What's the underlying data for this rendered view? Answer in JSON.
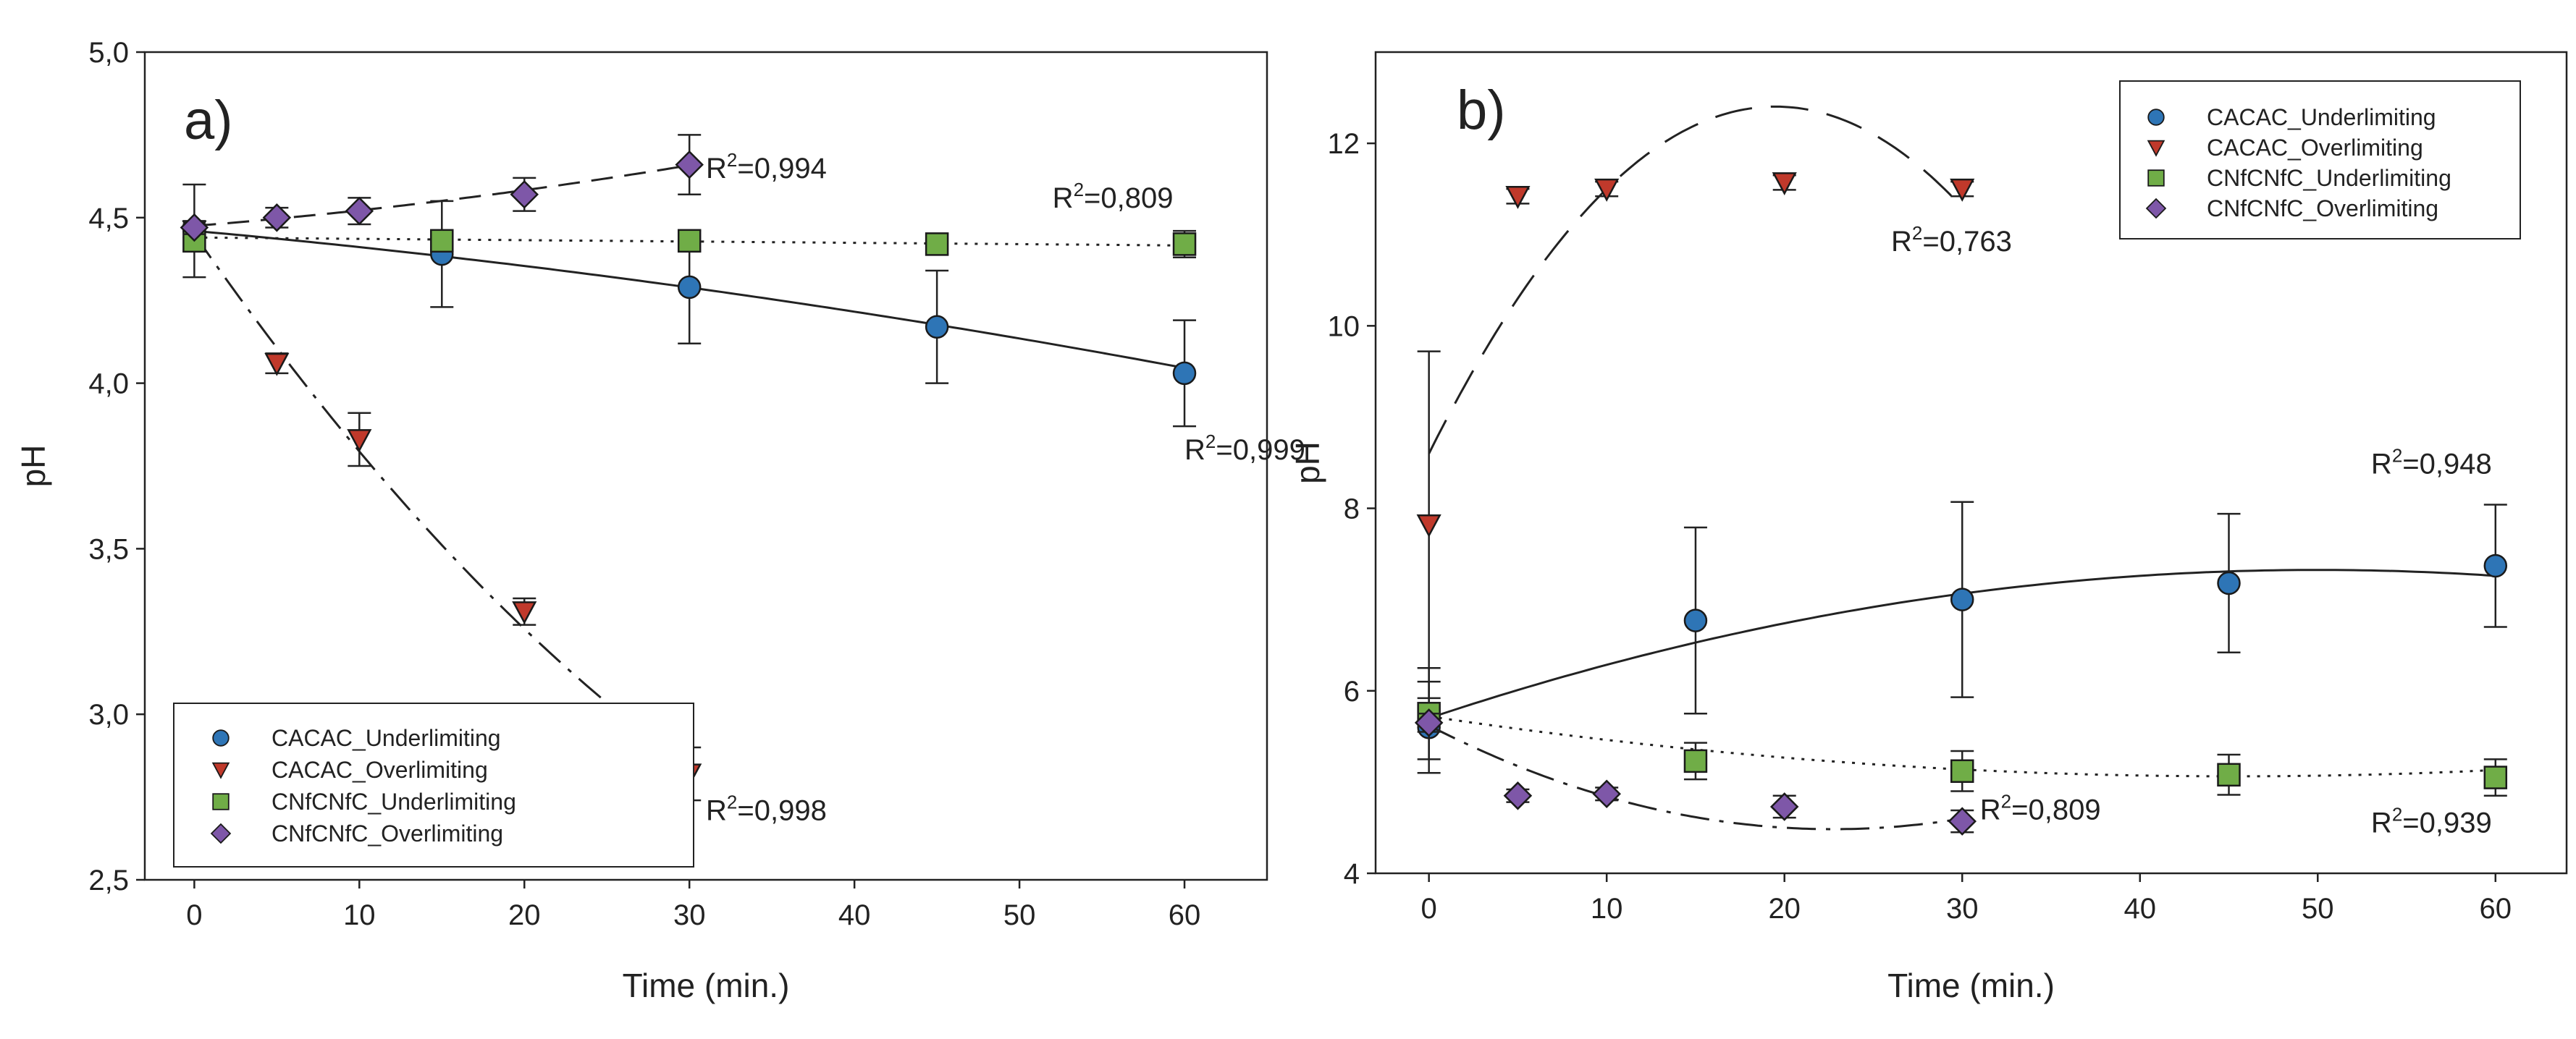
{
  "chart_data": [
    {
      "panel": "a)",
      "type": "scatter",
      "xlabel": "Time (min.)",
      "ylabel": "pH",
      "xlim": [
        -3,
        65
      ],
      "ylim": [
        2.5,
        5.0
      ],
      "xticks": [
        0,
        10,
        20,
        30,
        40,
        50,
        60
      ],
      "yticks": [
        2.5,
        3.0,
        3.5,
        4.0,
        4.5,
        5.0
      ],
      "ytick_labels": [
        "2,5",
        "3,0",
        "3,5",
        "4,0",
        "4,5",
        "5,0"
      ],
      "legend_position": "bottom-left",
      "series": [
        {
          "name": "CACAC_Underlimiting",
          "marker": "circle",
          "color": "#2e75b6",
          "line": "solid",
          "x": [
            0,
            15,
            30,
            45,
            60
          ],
          "y": [
            4.46,
            4.39,
            4.29,
            4.17,
            4.03
          ],
          "err": [
            0.14,
            0.16,
            0.17,
            0.17,
            0.16
          ],
          "fit": [
            4.46,
            -0.0045,
            -4e-05
          ],
          "r2": "0,999",
          "r2_at": [
            60,
            3.77
          ]
        },
        {
          "name": "CACAC_Overlimiting",
          "marker": "triangle-down",
          "color": "#c0392b",
          "line": "dashdot",
          "x": [
            0,
            5,
            10,
            20,
            30
          ],
          "y": [
            4.46,
            4.06,
            3.83,
            3.31,
            2.82
          ],
          "err": [
            0.02,
            0.03,
            0.08,
            0.04,
            0.08
          ],
          "fit": [
            4.45,
            -0.0716,
            0.0006
          ],
          "r2": "0,998",
          "r2_at": [
            31,
            2.68
          ]
        },
        {
          "name": "CNfCNfC_Underlimiting",
          "marker": "square",
          "color": "#70ad47",
          "line": "dotted",
          "x": [
            0,
            15,
            30,
            45,
            60
          ],
          "y": [
            4.43,
            4.43,
            4.43,
            4.42,
            4.42
          ],
          "err": [
            0.03,
            0.03,
            0.03,
            0.03,
            0.04
          ],
          "fit": [
            4.44,
            -0.0004,
            0
          ],
          "r2": "0,809",
          "r2_at": [
            52,
            4.53
          ]
        },
        {
          "name": "CNfCNfC_Overlimiting",
          "marker": "diamond",
          "color": "#7e57a8",
          "line": "dashed",
          "x": [
            0,
            5,
            10,
            20,
            30
          ],
          "y": [
            4.47,
            4.5,
            4.52,
            4.57,
            4.66
          ],
          "err": [
            0.02,
            0.03,
            0.04,
            0.05,
            0.09
          ],
          "fit": [
            4.475,
            0.004,
            7e-05
          ],
          "r2": "0,994",
          "r2_at": [
            31,
            4.62
          ]
        }
      ]
    },
    {
      "panel": "b)",
      "type": "scatter",
      "xlabel": "Time (min.)",
      "ylabel": "pH",
      "xlim": [
        -3,
        64
      ],
      "ylim": [
        4,
        13
      ],
      "xticks": [
        0,
        10,
        20,
        30,
        40,
        50,
        60
      ],
      "yticks": [
        4,
        6,
        8,
        10,
        12
      ],
      "ytick_labels": [
        "4",
        "6",
        "8",
        "10",
        "12"
      ],
      "legend_position": "top-right",
      "series": [
        {
          "name": "CACAC_Underlimiting",
          "marker": "circle",
          "color": "#2e75b6",
          "line": "solid",
          "x": [
            0,
            15,
            30,
            45,
            60
          ],
          "y": [
            5.6,
            6.77,
            7.0,
            7.18,
            7.37
          ],
          "err": [
            0.5,
            1.02,
            1.07,
            0.76,
            0.67
          ],
          "fit": [
            5.7,
            0.065,
            -0.00065
          ],
          "r2": "0,948",
          "r2_at": [
            53,
            8.38
          ]
        },
        {
          "name": "CACAC_Overlimiting",
          "marker": "triangle-down",
          "color": "#c0392b",
          "line": "longdash",
          "x": [
            0,
            5,
            10,
            20,
            30
          ],
          "y": [
            7.82,
            11.42,
            11.5,
            11.57,
            11.5
          ],
          "err": [
            1.9,
            0.08,
            0.08,
            0.08,
            0.08
          ],
          "fit": [
            8.6,
            0.39,
            -0.01
          ],
          "r2": "0,763",
          "r2_at": [
            26,
            10.82
          ]
        },
        {
          "name": "CNfCNfC_Underlimiting",
          "marker": "square",
          "color": "#70ad47",
          "line": "dotted",
          "x": [
            0,
            15,
            30,
            45,
            60
          ],
          "y": [
            5.75,
            5.23,
            5.12,
            5.08,
            5.05
          ],
          "err": [
            0.5,
            0.2,
            0.22,
            0.22,
            0.2
          ],
          "fit": [
            5.72,
            -0.029,
            0.00032
          ],
          "r2": "0,939",
          "r2_at": [
            53,
            4.45
          ]
        },
        {
          "name": "CNfCNfC_Overlimiting",
          "marker": "diamond",
          "color": "#7e57a8",
          "line": "dashdot",
          "x": [
            0,
            5,
            10,
            20,
            30
          ],
          "y": [
            5.65,
            4.85,
            4.87,
            4.73,
            4.57
          ],
          "err": [
            0.1,
            0.07,
            0.07,
            0.12,
            0.12
          ],
          "fit": [
            5.62,
            -0.1,
            0.0022
          ],
          "r2": "0,809",
          "r2_at": [
            31,
            4.59
          ]
        }
      ]
    }
  ]
}
